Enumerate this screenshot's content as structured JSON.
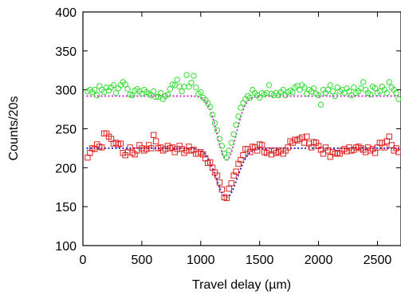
{
  "chart_data": {
    "type": "scatter",
    "xlabel": "Travel delay (µm)",
    "ylabel": "Counts/20s",
    "xlim": [
      0,
      2700
    ],
    "ylim": [
      100,
      400
    ],
    "xticks": [
      0,
      500,
      1000,
      1500,
      2000,
      2500
    ],
    "yticks": [
      100,
      150,
      200,
      250,
      300,
      350,
      400
    ],
    "xtick_labels": [
      "0",
      "500",
      "1000",
      "1500",
      "2000",
      "2500"
    ],
    "ytick_labels": [
      "100",
      "150",
      "200",
      "250",
      "300",
      "350",
      "400"
    ],
    "grid": false,
    "legend": "none",
    "series": [
      {
        "marker": "circle",
        "color": "#33dd33",
        "points": [
          [
            40,
            298
          ],
          [
            60,
            300
          ],
          [
            80,
            297
          ],
          [
            100,
            300
          ],
          [
            120,
            293
          ],
          [
            140,
            305
          ],
          [
            160,
            300
          ],
          [
            180,
            297
          ],
          [
            200,
            303
          ],
          [
            220,
            299
          ],
          [
            240,
            303
          ],
          [
            260,
            306
          ],
          [
            280,
            296
          ],
          [
            300,
            302
          ],
          [
            320,
            306
          ],
          [
            340,
            310
          ],
          [
            360,
            307
          ],
          [
            380,
            301
          ],
          [
            400,
            294
          ],
          [
            420,
            293
          ],
          [
            440,
            299
          ],
          [
            460,
            301
          ],
          [
            480,
            298
          ],
          [
            500,
            295
          ],
          [
            520,
            300
          ],
          [
            540,
            297
          ],
          [
            560,
            295
          ],
          [
            580,
            293
          ],
          [
            600,
            298
          ],
          [
            620,
            291
          ],
          [
            640,
            291
          ],
          [
            660,
            296
          ],
          [
            680,
            288
          ],
          [
            700,
            292
          ],
          [
            720,
            294
          ],
          [
            740,
            301
          ],
          [
            760,
            307
          ],
          [
            780,
            306
          ],
          [
            800,
            313
          ],
          [
            820,
            304
          ],
          [
            840,
            298
          ],
          [
            860,
            304
          ],
          [
            880,
            319
          ],
          [
            900,
            304
          ],
          [
            920,
            309
          ],
          [
            940,
            318
          ],
          [
            960,
            303
          ],
          [
            980,
            295
          ],
          [
            1000,
            297
          ],
          [
            1020,
            290
          ],
          [
            1040,
            287
          ],
          [
            1060,
            283
          ],
          [
            1080,
            278
          ],
          [
            1100,
            268
          ],
          [
            1120,
            257
          ],
          [
            1140,
            248
          ],
          [
            1160,
            237
          ],
          [
            1180,
            228
          ],
          [
            1200,
            218
          ],
          [
            1220,
            213
          ],
          [
            1240,
            222
          ],
          [
            1260,
            232
          ],
          [
            1280,
            243
          ],
          [
            1300,
            255
          ],
          [
            1320,
            266
          ],
          [
            1340,
            277
          ],
          [
            1360,
            283
          ],
          [
            1380,
            288
          ],
          [
            1400,
            292
          ],
          [
            1420,
            290
          ],
          [
            1440,
            300
          ],
          [
            1460,
            296
          ],
          [
            1480,
            293
          ],
          [
            1500,
            290
          ],
          [
            1520,
            296
          ],
          [
            1540,
            294
          ],
          [
            1560,
            296
          ],
          [
            1580,
            306
          ],
          [
            1600,
            295
          ],
          [
            1620,
            293
          ],
          [
            1640,
            296
          ],
          [
            1660,
            293
          ],
          [
            1680,
            297
          ],
          [
            1700,
            300
          ],
          [
            1720,
            293
          ],
          [
            1740,
            297
          ],
          [
            1760,
            299
          ],
          [
            1780,
            297
          ],
          [
            1800,
            303
          ],
          [
            1820,
            305
          ],
          [
            1840,
            300
          ],
          [
            1860,
            306
          ],
          [
            1880,
            303
          ],
          [
            1900,
            295
          ],
          [
            1920,
            300
          ],
          [
            1940,
            298
          ],
          [
            1960,
            302
          ],
          [
            1980,
            295
          ],
          [
            2000,
            293
          ],
          [
            2020,
            281
          ],
          [
            2040,
            300
          ],
          [
            2060,
            296
          ],
          [
            2080,
            300
          ],
          [
            2100,
            306
          ],
          [
            2120,
            298
          ],
          [
            2140,
            292
          ],
          [
            2160,
            303
          ],
          [
            2180,
            298
          ],
          [
            2200,
            300
          ],
          [
            2220,
            296
          ],
          [
            2240,
            302
          ],
          [
            2260,
            298
          ],
          [
            2280,
            293
          ],
          [
            2300,
            303
          ],
          [
            2320,
            296
          ],
          [
            2340,
            298
          ],
          [
            2360,
            302
          ],
          [
            2380,
            310
          ],
          [
            2400,
            300
          ],
          [
            2420,
            296
          ],
          [
            2440,
            294
          ],
          [
            2460,
            304
          ],
          [
            2480,
            302
          ],
          [
            2500,
            296
          ],
          [
            2520,
            298
          ],
          [
            2540,
            304
          ],
          [
            2560,
            300
          ],
          [
            2580,
            296
          ],
          [
            2600,
            310
          ],
          [
            2620,
            303
          ],
          [
            2640,
            300
          ],
          [
            2660,
            296
          ],
          [
            2680,
            288
          ]
        ]
      },
      {
        "marker": "square",
        "color": "#dd2222",
        "points": [
          [
            40,
            213
          ],
          [
            60,
            219
          ],
          [
            80,
            225
          ],
          [
            100,
            224
          ],
          [
            120,
            230
          ],
          [
            140,
            227
          ],
          [
            160,
            226
          ],
          [
            180,
            244
          ],
          [
            200,
            244
          ],
          [
            220,
            240
          ],
          [
            240,
            237
          ],
          [
            260,
            231
          ],
          [
            280,
            232
          ],
          [
            300,
            230
          ],
          [
            320,
            231
          ],
          [
            340,
            219
          ],
          [
            360,
            216
          ],
          [
            380,
            220
          ],
          [
            400,
            226
          ],
          [
            420,
            219
          ],
          [
            440,
            217
          ],
          [
            460,
            222
          ],
          [
            480,
            229
          ],
          [
            500,
            225
          ],
          [
            520,
            222
          ],
          [
            540,
            224
          ],
          [
            560,
            229
          ],
          [
            580,
            225
          ],
          [
            600,
            242
          ],
          [
            620,
            234
          ],
          [
            640,
            225
          ],
          [
            660,
            226
          ],
          [
            680,
            222
          ],
          [
            700,
            224
          ],
          [
            720,
            228
          ],
          [
            740,
            225
          ],
          [
            760,
            226
          ],
          [
            780,
            220
          ],
          [
            800,
            224
          ],
          [
            820,
            228
          ],
          [
            840,
            224
          ],
          [
            860,
            219
          ],
          [
            880,
            222
          ],
          [
            900,
            227
          ],
          [
            920,
            222
          ],
          [
            940,
            223
          ],
          [
            960,
            218
          ],
          [
            980,
            218
          ],
          [
            1000,
            220
          ],
          [
            1020,
            217
          ],
          [
            1040,
            212
          ],
          [
            1060,
            206
          ],
          [
            1080,
            207
          ],
          [
            1100,
            200
          ],
          [
            1120,
            194
          ],
          [
            1140,
            190
          ],
          [
            1160,
            181
          ],
          [
            1180,
            172
          ],
          [
            1200,
            162
          ],
          [
            1220,
            161
          ],
          [
            1240,
            173
          ],
          [
            1260,
            180
          ],
          [
            1280,
            190
          ],
          [
            1300,
            195
          ],
          [
            1320,
            205
          ],
          [
            1340,
            210
          ],
          [
            1360,
            216
          ],
          [
            1380,
            224
          ],
          [
            1400,
            224
          ],
          [
            1420,
            220
          ],
          [
            1440,
            227
          ],
          [
            1460,
            226
          ],
          [
            1480,
            222
          ],
          [
            1500,
            230
          ],
          [
            1520,
            229
          ],
          [
            1540,
            220
          ],
          [
            1560,
            219
          ],
          [
            1580,
            222
          ],
          [
            1600,
            217
          ],
          [
            1620,
            222
          ],
          [
            1640,
            219
          ],
          [
            1660,
            220
          ],
          [
            1680,
            222
          ],
          [
            1700,
            218
          ],
          [
            1720,
            222
          ],
          [
            1740,
            226
          ],
          [
            1760,
            234
          ],
          [
            1780,
            232
          ],
          [
            1800,
            236
          ],
          [
            1820,
            235
          ],
          [
            1840,
            237
          ],
          [
            1860,
            239
          ],
          [
            1880,
            232
          ],
          [
            1900,
            240
          ],
          [
            1920,
            231
          ],
          [
            1940,
            226
          ],
          [
            1960,
            233
          ],
          [
            1980,
            232
          ],
          [
            2000,
            228
          ],
          [
            2020,
            223
          ],
          [
            2040,
            218
          ],
          [
            2060,
            226
          ],
          [
            2080,
            222
          ],
          [
            2100,
            214
          ],
          [
            2120,
            220
          ],
          [
            2140,
            218
          ],
          [
            2160,
            219
          ],
          [
            2180,
            218
          ],
          [
            2200,
            222
          ],
          [
            2220,
            224
          ],
          [
            2240,
            221
          ],
          [
            2260,
            226
          ],
          [
            2280,
            222
          ],
          [
            2300,
            223
          ],
          [
            2320,
            226
          ],
          [
            2340,
            227
          ],
          [
            2360,
            225
          ],
          [
            2380,
            223
          ],
          [
            2400,
            220
          ],
          [
            2420,
            226
          ],
          [
            2440,
            222
          ],
          [
            2460,
            224
          ],
          [
            2480,
            219
          ],
          [
            2500,
            226
          ],
          [
            2520,
            232
          ],
          [
            2540,
            232
          ],
          [
            2560,
            226
          ],
          [
            2580,
            234
          ],
          [
            2600,
            240
          ],
          [
            2620,
            229
          ],
          [
            2640,
            222
          ],
          [
            2660,
            225
          ],
          [
            2680,
            220
          ]
        ]
      }
    ],
    "fits": [
      {
        "style": "dotted",
        "color": "#cc33cc",
        "baseline": 292,
        "center": 1220,
        "depth": 82,
        "sigma": 80
      },
      {
        "style": "dotted",
        "color": "#2222cc",
        "baseline": 225,
        "center": 1220,
        "depth": 63,
        "sigma": 90
      }
    ]
  }
}
